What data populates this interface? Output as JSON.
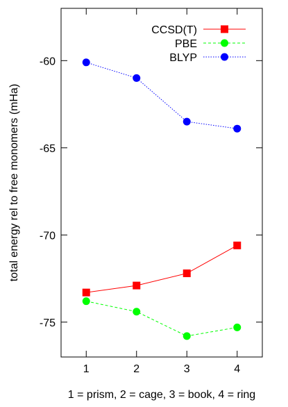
{
  "chart_data": {
    "type": "line",
    "xlabel": "1 = prism, 2 = cage, 3 = book, 4 = ring",
    "ylabel": "total energy rel to free monomers (mHa)",
    "x": [
      1,
      2,
      3,
      4
    ],
    "xlim": [
      0.5,
      4.5
    ],
    "ylim": [
      -77,
      -57
    ],
    "xticks": [
      1,
      2,
      3,
      4
    ],
    "yticks": [
      -60,
      -65,
      -70,
      -75
    ],
    "grid": false,
    "legend_position": "top-right",
    "series": [
      {
        "name": "CCSD(T)",
        "values": [
          -73.3,
          -72.9,
          -72.2,
          -70.6
        ],
        "color": "#ff0000",
        "marker": "square",
        "line": "solid"
      },
      {
        "name": "PBE",
        "values": [
          -73.8,
          -74.4,
          -75.8,
          -75.3
        ],
        "color": "#00ff00",
        "marker": "circle",
        "line": "dashed"
      },
      {
        "name": "BLYP",
        "values": [
          -60.1,
          -61.0,
          -63.5,
          -63.9
        ],
        "color": "#0000ff",
        "marker": "circle",
        "line": "dotted"
      }
    ]
  }
}
